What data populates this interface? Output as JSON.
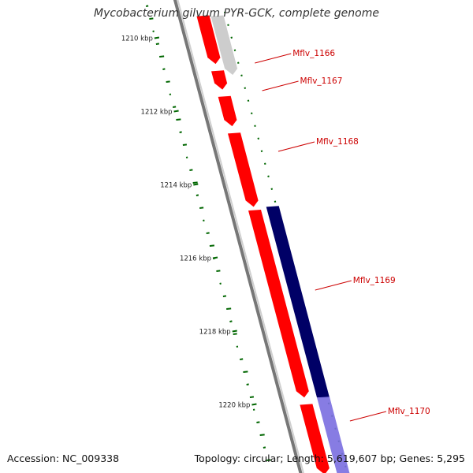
{
  "title": "Mycobacterium gilvum PYR-GCK, complete genome",
  "footer": {
    "accession": "Accession: NC_009338",
    "info": "Topology: circular; Length: 5,619,607 bp; Genes: 5,295"
  },
  "colors": {
    "backbone": "#777777",
    "forward_gene": "#ff0000",
    "reverse_gene": "#000066",
    "light_gene": "#c8c8c8",
    "light_reverse_gene": "#7a6ee0",
    "gc_marks": "#006600",
    "label": "#cc0000"
  },
  "ruler": [
    {
      "label": "1210 kbp"
    },
    {
      "label": "1212 kbp"
    },
    {
      "label": "1214 kbp"
    },
    {
      "label": "1216 kbp"
    },
    {
      "label": "1218 kbp"
    },
    {
      "label": "1220 kbp"
    }
  ],
  "genes": [
    {
      "name": "",
      "strand": "forward",
      "style": "light",
      "start_kbp": 1209.4,
      "end_kbp": 1211.0
    },
    {
      "name": "Mflv_1166",
      "strand": "forward",
      "style": "solid",
      "start_kbp": 1209.4,
      "end_kbp": 1210.7
    },
    {
      "name": "Mflv_1167",
      "strand": "forward",
      "style": "solid",
      "start_kbp": 1210.9,
      "end_kbp": 1211.4
    },
    {
      "name": "",
      "strand": "forward",
      "style": "solid",
      "start_kbp": 1211.6,
      "end_kbp": 1212.4
    },
    {
      "name": "Mflv_1168",
      "strand": "forward",
      "style": "solid",
      "start_kbp": 1212.6,
      "end_kbp": 1214.6
    },
    {
      "name": "Mflv_1169",
      "strand": "forward",
      "style": "solid",
      "start_kbp": 1214.7,
      "end_kbp": 1219.8
    },
    {
      "name": "",
      "strand": "reverse",
      "style": "solid",
      "start_kbp": 1214.6,
      "end_kbp": 1219.8
    },
    {
      "name": "Mflv_1170",
      "strand": "forward",
      "style": "solid",
      "start_kbp": 1220.0,
      "end_kbp": 1221.9
    },
    {
      "name": "",
      "strand": "reverse",
      "style": "light",
      "start_kbp": 1219.8,
      "end_kbp": 1221.9
    }
  ]
}
